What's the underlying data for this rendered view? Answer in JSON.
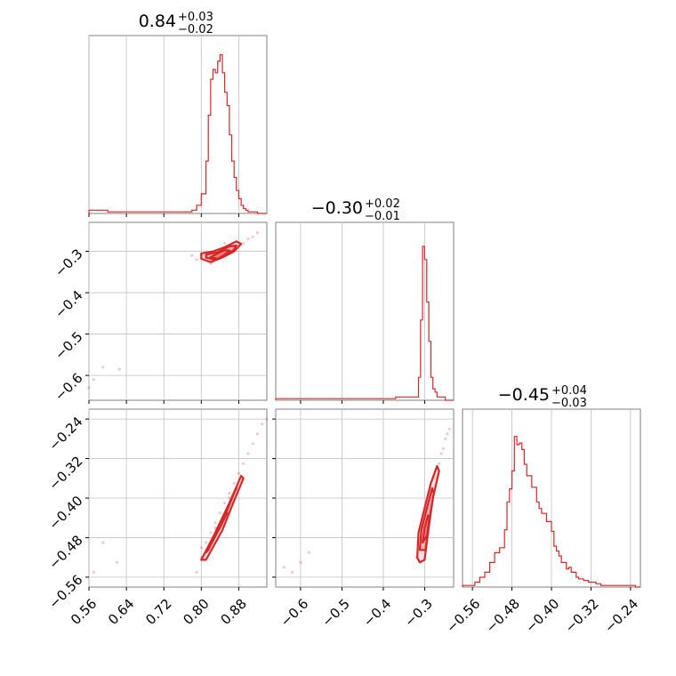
{
  "chart_data": {
    "type": "corner",
    "color": "#d62728",
    "grid": true,
    "titles": [
      {
        "median": "0.84",
        "plus": "+0.03",
        "minus": "−0.02"
      },
      {
        "median": "−0.30",
        "plus": "+0.02",
        "minus": "−0.01"
      },
      {
        "median": "−0.45",
        "plus": "+0.04",
        "minus": "−0.03"
      }
    ],
    "params": [
      {
        "range": [
          0.56,
          0.94
        ],
        "ticks": [
          0.56,
          0.64,
          0.72,
          0.8,
          0.88
        ],
        "ticklabels": [
          "0.56",
          "0.64",
          "0.72",
          "0.80",
          "0.88"
        ]
      },
      {
        "range": [
          -0.66,
          -0.23
        ],
        "ticks": [
          -0.6,
          -0.5,
          -0.4,
          -0.3
        ],
        "ticklabels": [
          "−0.6",
          "−0.5",
          "−0.4",
          "−0.3"
        ]
      },
      {
        "range": [
          -0.58,
          -0.22
        ],
        "ticks": [
          -0.56,
          -0.48,
          -0.4,
          -0.32,
          -0.24
        ],
        "ticklabels": [
          "−0.56",
          "−0.48",
          "−0.40",
          "−0.32",
          "−0.24"
        ]
      }
    ],
    "histograms": [
      {
        "bins": [
          [
            0.56,
            0.02
          ],
          [
            0.6,
            0.01
          ],
          [
            0.78,
            0.02
          ],
          [
            0.79,
            0.05
          ],
          [
            0.8,
            0.12
          ],
          [
            0.81,
            0.32
          ],
          [
            0.815,
            0.6
          ],
          [
            0.82,
            0.82
          ],
          [
            0.825,
            0.88
          ],
          [
            0.83,
            0.86
          ],
          [
            0.835,
            0.93
          ],
          [
            0.84,
            0.97
          ],
          [
            0.845,
            0.86
          ],
          [
            0.85,
            0.74
          ],
          [
            0.855,
            0.66
          ],
          [
            0.86,
            0.48
          ],
          [
            0.865,
            0.32
          ],
          [
            0.87,
            0.22
          ],
          [
            0.875,
            0.14
          ],
          [
            0.88,
            0.09
          ],
          [
            0.885,
            0.05
          ],
          [
            0.89,
            0.03
          ],
          [
            0.895,
            0.02
          ],
          [
            0.9,
            0.01
          ],
          [
            0.92,
            0
          ]
        ]
      },
      {
        "bins": [
          [
            -0.66,
            0.01
          ],
          [
            -0.37,
            0.02
          ],
          [
            -0.315,
            0.14
          ],
          [
            -0.31,
            0.49
          ],
          [
            -0.305,
            0.94
          ],
          [
            -0.3,
            0.86
          ],
          [
            -0.295,
            0.6
          ],
          [
            -0.29,
            0.36
          ],
          [
            -0.285,
            0.14
          ],
          [
            -0.28,
            0.07
          ],
          [
            -0.275,
            0.05
          ],
          [
            -0.27,
            0.02
          ],
          [
            -0.25,
            0
          ]
        ]
      },
      {
        "bins": [
          [
            -0.58,
            0.01
          ],
          [
            -0.555,
            0.03
          ],
          [
            -0.545,
            0.06
          ],
          [
            -0.535,
            0.09
          ],
          [
            -0.525,
            0.15
          ],
          [
            -0.515,
            0.21
          ],
          [
            -0.505,
            0.24
          ],
          [
            -0.495,
            0.35
          ],
          [
            -0.49,
            0.52
          ],
          [
            -0.485,
            0.6
          ],
          [
            -0.48,
            0.71
          ],
          [
            -0.475,
            0.92
          ],
          [
            -0.47,
            0.87
          ],
          [
            -0.465,
            0.88
          ],
          [
            -0.46,
            0.84
          ],
          [
            -0.455,
            0.75
          ],
          [
            -0.45,
            0.68
          ],
          [
            -0.44,
            0.61
          ],
          [
            -0.43,
            0.52
          ],
          [
            -0.425,
            0.48
          ],
          [
            -0.42,
            0.45
          ],
          [
            -0.41,
            0.4
          ],
          [
            -0.4,
            0.34
          ],
          [
            -0.395,
            0.25
          ],
          [
            -0.39,
            0.22
          ],
          [
            -0.385,
            0.19
          ],
          [
            -0.38,
            0.15
          ],
          [
            -0.37,
            0.11
          ],
          [
            -0.365,
            0.12
          ],
          [
            -0.36,
            0.09
          ],
          [
            -0.35,
            0.06
          ],
          [
            -0.345,
            0.05
          ],
          [
            -0.335,
            0.04
          ],
          [
            -0.325,
            0.03
          ],
          [
            -0.31,
            0.02
          ],
          [
            -0.3,
            0.01
          ],
          [
            -0.26,
            0.01
          ],
          [
            -0.25,
            0.01
          ],
          [
            -0.23,
            0
          ]
        ]
      }
    ],
    "panels_2d": [
      {
        "row": 1,
        "col": 0,
        "scatter": [
          [
            0.8,
            -0.31
          ],
          [
            0.81,
            -0.315
          ],
          [
            0.82,
            -0.32
          ],
          [
            0.83,
            -0.31
          ],
          [
            0.84,
            -0.3
          ],
          [
            0.85,
            -0.305
          ],
          [
            0.86,
            -0.295
          ],
          [
            0.87,
            -0.29
          ],
          [
            0.88,
            -0.285
          ],
          [
            0.89,
            -0.28
          ],
          [
            0.9,
            -0.27
          ],
          [
            0.91,
            -0.265
          ],
          [
            0.92,
            -0.255
          ],
          [
            0.79,
            -0.32
          ],
          [
            0.78,
            -0.31
          ],
          [
            0.82,
            -0.33
          ],
          [
            0.85,
            -0.28
          ],
          [
            0.87,
            -0.3
          ],
          [
            0.59,
            -0.58
          ],
          [
            0.57,
            -0.61
          ],
          [
            0.56,
            -0.63
          ],
          [
            0.625,
            -0.585
          ]
        ],
        "contours": [
          [
            [
              0.8,
              -0.318
            ],
            [
              0.82,
              -0.326
            ],
            [
              0.845,
              -0.315
            ],
            [
              0.87,
              -0.3
            ],
            [
              0.885,
              -0.282
            ],
            [
              0.875,
              -0.276
            ],
            [
              0.85,
              -0.29
            ],
            [
              0.825,
              -0.3
            ],
            [
              0.8,
              -0.305
            ]
          ],
          [
            [
              0.81,
              -0.315
            ],
            [
              0.83,
              -0.321
            ],
            [
              0.85,
              -0.31
            ],
            [
              0.87,
              -0.296
            ],
            [
              0.875,
              -0.286
            ],
            [
              0.86,
              -0.288
            ],
            [
              0.835,
              -0.302
            ],
            [
              0.81,
              -0.308
            ]
          ],
          [
            [
              0.82,
              -0.314
            ],
            [
              0.835,
              -0.318
            ],
            [
              0.85,
              -0.308
            ],
            [
              0.86,
              -0.298
            ],
            [
              0.85,
              -0.297
            ],
            [
              0.835,
              -0.305
            ]
          ]
        ]
      },
      {
        "row": 2,
        "col": 0,
        "scatter": [
          [
            0.79,
            -0.55
          ],
          [
            0.8,
            -0.52
          ],
          [
            0.81,
            -0.49
          ],
          [
            0.82,
            -0.47
          ],
          [
            0.83,
            -0.45
          ],
          [
            0.84,
            -0.43
          ],
          [
            0.85,
            -0.41
          ],
          [
            0.86,
            -0.39
          ],
          [
            0.87,
            -0.37
          ],
          [
            0.88,
            -0.35
          ],
          [
            0.89,
            -0.33
          ],
          [
            0.9,
            -0.31
          ],
          [
            0.91,
            -0.29
          ],
          [
            0.92,
            -0.27
          ],
          [
            0.93,
            -0.25
          ],
          [
            0.94,
            -0.24
          ],
          [
            0.8,
            -0.5
          ],
          [
            0.83,
            -0.46
          ],
          [
            0.86,
            -0.4
          ],
          [
            0.59,
            -0.49
          ],
          [
            0.57,
            -0.55
          ],
          [
            0.62,
            -0.53
          ]
        ],
        "contours": [
          [
            [
              0.8,
              -0.525
            ],
            [
              0.83,
              -0.47
            ],
            [
              0.86,
              -0.41
            ],
            [
              0.885,
              -0.355
            ],
            [
              0.89,
              -0.36
            ],
            [
              0.87,
              -0.405
            ],
            [
              0.845,
              -0.465
            ],
            [
              0.81,
              -0.525
            ]
          ],
          [
            [
              0.81,
              -0.51
            ],
            [
              0.83,
              -0.47
            ],
            [
              0.855,
              -0.42
            ],
            [
              0.875,
              -0.38
            ],
            [
              0.87,
              -0.39
            ],
            [
              0.845,
              -0.45
            ],
            [
              0.815,
              -0.505
            ]
          ],
          [
            [
              0.82,
              -0.49
            ],
            [
              0.84,
              -0.46
            ],
            [
              0.855,
              -0.43
            ],
            [
              0.85,
              -0.43
            ],
            [
              0.835,
              -0.46
            ]
          ]
        ]
      },
      {
        "row": 2,
        "col": 1,
        "scatter": [
          [
            -0.31,
            -0.5
          ],
          [
            -0.305,
            -0.48
          ],
          [
            -0.3,
            -0.46
          ],
          [
            -0.295,
            -0.44
          ],
          [
            -0.29,
            -0.42
          ],
          [
            -0.285,
            -0.4
          ],
          [
            -0.28,
            -0.38
          ],
          [
            -0.275,
            -0.36
          ],
          [
            -0.27,
            -0.34
          ],
          [
            -0.265,
            -0.33
          ],
          [
            -0.26,
            -0.31
          ],
          [
            -0.255,
            -0.3
          ],
          [
            -0.25,
            -0.28
          ],
          [
            -0.245,
            -0.27
          ],
          [
            -0.24,
            -0.26
          ],
          [
            -0.32,
            -0.52
          ],
          [
            -0.31,
            -0.53
          ],
          [
            -0.29,
            -0.47
          ],
          [
            -0.6,
            -0.53
          ],
          [
            -0.62,
            -0.55
          ],
          [
            -0.64,
            -0.54
          ],
          [
            -0.58,
            -0.51
          ]
        ],
        "contours": [
          [
            [
              -0.318,
              -0.52
            ],
            [
              -0.315,
              -0.47
            ],
            [
              -0.3,
              -0.42
            ],
            [
              -0.285,
              -0.37
            ],
            [
              -0.27,
              -0.335
            ],
            [
              -0.265,
              -0.345
            ],
            [
              -0.28,
              -0.4
            ],
            [
              -0.292,
              -0.47
            ],
            [
              -0.3,
              -0.525
            ],
            [
              -0.312,
              -0.53
            ]
          ],
          [
            [
              -0.312,
              -0.505
            ],
            [
              -0.308,
              -0.465
            ],
            [
              -0.296,
              -0.425
            ],
            [
              -0.282,
              -0.38
            ],
            [
              -0.278,
              -0.39
            ],
            [
              -0.29,
              -0.45
            ],
            [
              -0.298,
              -0.505
            ]
          ],
          [
            [
              -0.305,
              -0.49
            ],
            [
              -0.3,
              -0.46
            ],
            [
              -0.292,
              -0.435
            ],
            [
              -0.288,
              -0.44
            ],
            [
              -0.294,
              -0.475
            ]
          ]
        ]
      }
    ]
  }
}
